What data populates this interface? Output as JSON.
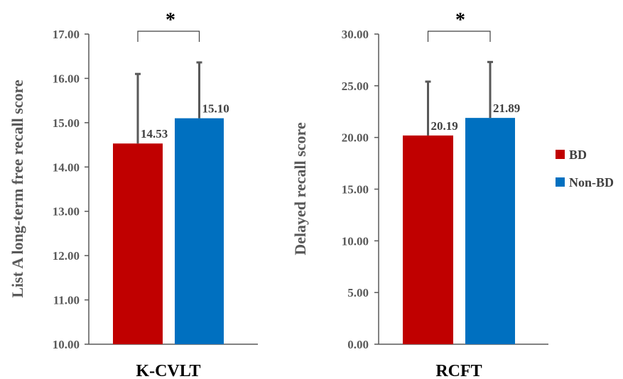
{
  "colors": {
    "BD": "#C00000",
    "Non-BD": "#0070C0",
    "axis": "#595959",
    "error": "#595959"
  },
  "chart_data": [
    {
      "type": "bar",
      "xlabel": "K-CVLT",
      "ylabel": "List A  long-term free recall score",
      "ylim": [
        10,
        17
      ],
      "yticks": [
        10,
        11,
        12,
        13,
        14,
        15,
        16,
        17
      ],
      "ytick_labels": [
        "10.00",
        "11.00",
        "12.00",
        "13.00",
        "14.00",
        "15.00",
        "16.00",
        "17.00"
      ],
      "series": [
        {
          "name": "BD",
          "value": 14.53,
          "label": "14.53",
          "error_top": 16.1
        },
        {
          "name": "Non-BD",
          "value": 15.1,
          "label": "15.10",
          "error_top": 16.36
        }
      ],
      "significance": "*",
      "grid": false
    },
    {
      "type": "bar",
      "xlabel": "RCFT",
      "ylabel": "Delayed recall score",
      "ylim": [
        0,
        30
      ],
      "yticks": [
        0,
        5,
        10,
        15,
        20,
        25,
        30
      ],
      "ytick_labels": [
        "0.00",
        "5.00",
        "10.00",
        "15.00",
        "20.00",
        "25.00",
        "30.00"
      ],
      "series": [
        {
          "name": "BD",
          "value": 20.19,
          "label": "20.19",
          "error_top": 25.4
        },
        {
          "name": "Non-BD",
          "value": 21.89,
          "label": "21.89",
          "error_top": 27.3
        }
      ],
      "significance": "*",
      "grid": false
    }
  ],
  "legend": {
    "position": "right",
    "items": [
      "BD",
      "Non-BD"
    ]
  }
}
